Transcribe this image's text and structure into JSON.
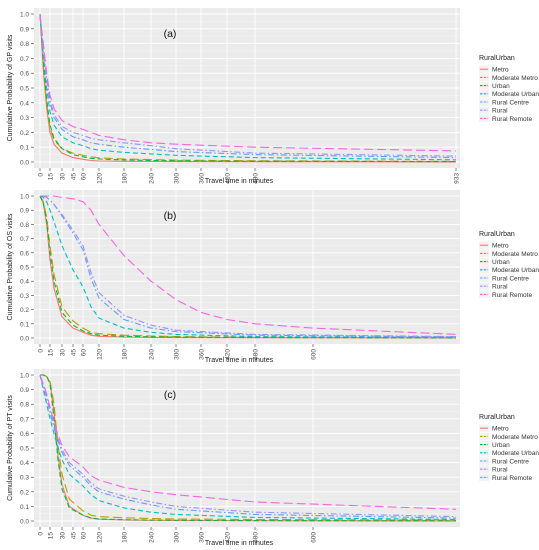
{
  "legend": {
    "title": "RuralUrban",
    "entries": [
      {
        "name": "Metro",
        "color": "#F8766D",
        "dash": "solid"
      },
      {
        "name": "Moderate Metro",
        "color": "#B79F00",
        "dash": "longdash"
      },
      {
        "name": "Urban",
        "color": "#00BA38",
        "dash": "dash"
      },
      {
        "name": "Moderate Urban",
        "color": "#00BFC4",
        "dash": "dash"
      },
      {
        "name": "Rural Centre",
        "color": "#619CFF",
        "dash": "dotdash"
      },
      {
        "name": "Rural",
        "color": "#9590FF",
        "dash": "dotdash"
      },
      {
        "name": "Rural Remote",
        "color": "#F564E3",
        "dash": "longdash"
      }
    ]
  },
  "chart_data": [
    {
      "type": "line",
      "panel_label": "(a)",
      "xlabel": "Travel time in minutes",
      "ylabel": "Cumulative Probability of GP visits",
      "xlim": [
        0,
        933
      ],
      "ylim": [
        0,
        1
      ],
      "x_ticks": [
        0,
        15,
        30,
        45,
        60,
        120,
        180,
        240,
        300,
        360,
        420,
        480,
        933
      ],
      "y_ticks": [
        "0.0",
        "0.1",
        "0.2",
        "0.3",
        "0.4",
        "0.5",
        "0.6",
        "0.7",
        "0.8",
        "0.9",
        "1.0"
      ],
      "grid": true,
      "series": [
        {
          "name": "Metro",
          "x": [
            0,
            5,
            10,
            15,
            20,
            30,
            45,
            60,
            90,
            120,
            180,
            240,
            300,
            480,
            933
          ],
          "y": [
            1.0,
            0.62,
            0.36,
            0.2,
            0.12,
            0.06,
            0.03,
            0.018,
            0.01,
            0.007,
            0.005,
            0.004,
            0.003,
            0.002,
            0.001
          ]
        },
        {
          "name": "Moderate Metro",
          "x": [
            0,
            5,
            10,
            15,
            20,
            30,
            45,
            60,
            90,
            120,
            180,
            240,
            300,
            480,
            933
          ],
          "y": [
            1.0,
            0.65,
            0.4,
            0.23,
            0.15,
            0.09,
            0.06,
            0.045,
            0.035,
            0.028,
            0.02,
            0.016,
            0.013,
            0.008,
            0.004
          ]
        },
        {
          "name": "Urban",
          "x": [
            0,
            5,
            10,
            15,
            20,
            30,
            45,
            60,
            90,
            120,
            180,
            240,
            300,
            480,
            933
          ],
          "y": [
            1.0,
            0.68,
            0.42,
            0.25,
            0.16,
            0.09,
            0.05,
            0.035,
            0.025,
            0.02,
            0.014,
            0.01,
            0.008,
            0.005,
            0.003
          ]
        },
        {
          "name": "Moderate Urban",
          "x": [
            0,
            5,
            10,
            15,
            20,
            30,
            45,
            60,
            90,
            120,
            180,
            240,
            300,
            480,
            933
          ],
          "y": [
            1.0,
            0.72,
            0.5,
            0.34,
            0.25,
            0.17,
            0.13,
            0.11,
            0.09,
            0.08,
            0.065,
            0.055,
            0.045,
            0.03,
            0.015
          ]
        },
        {
          "name": "Rural Centre",
          "x": [
            0,
            5,
            10,
            15,
            20,
            30,
            45,
            60,
            90,
            120,
            180,
            240,
            300,
            480,
            933
          ],
          "y": [
            1.0,
            0.75,
            0.55,
            0.4,
            0.3,
            0.22,
            0.17,
            0.15,
            0.13,
            0.12,
            0.1,
            0.085,
            0.07,
            0.05,
            0.03
          ]
        },
        {
          "name": "Rural",
          "x": [
            0,
            5,
            10,
            15,
            20,
            30,
            45,
            60,
            90,
            120,
            180,
            240,
            300,
            480,
            933
          ],
          "y": [
            1.0,
            0.76,
            0.56,
            0.42,
            0.32,
            0.24,
            0.2,
            0.18,
            0.16,
            0.15,
            0.13,
            0.11,
            0.09,
            0.06,
            0.04
          ]
        },
        {
          "name": "Rural Remote",
          "x": [
            0,
            5,
            10,
            15,
            20,
            30,
            45,
            60,
            90,
            120,
            180,
            240,
            300,
            480,
            933
          ],
          "y": [
            1.0,
            0.8,
            0.6,
            0.45,
            0.36,
            0.28,
            0.24,
            0.22,
            0.2,
            0.18,
            0.15,
            0.13,
            0.12,
            0.1,
            0.075
          ]
        }
      ]
    },
    {
      "type": "line",
      "panel_label": "(b)",
      "xlabel": "Travel time in minutes",
      "ylabel": "Cumulative Probability of OS visits",
      "xlim": [
        0,
        933
      ],
      "ylim": [
        0,
        1
      ],
      "x_ticks": [
        0,
        15,
        30,
        45,
        60,
        120,
        180,
        240,
        300,
        360,
        420,
        480,
        600
      ],
      "y_ticks": [
        "0.0",
        "0.1",
        "0.2",
        "0.3",
        "0.4",
        "0.5",
        "0.6",
        "0.7",
        "0.8",
        "0.9",
        "1.0"
      ],
      "grid": true,
      "series": [
        {
          "name": "Metro",
          "x": [
            0,
            5,
            10,
            15,
            20,
            30,
            45,
            60,
            90,
            120,
            180,
            240,
            300,
            480,
            933
          ],
          "y": [
            1.0,
            0.95,
            0.8,
            0.55,
            0.35,
            0.15,
            0.07,
            0.04,
            0.02,
            0.012,
            0.006,
            0.004,
            0.003,
            0.002,
            0.001
          ]
        },
        {
          "name": "Moderate Metro",
          "x": [
            0,
            5,
            10,
            15,
            20,
            30,
            45,
            60,
            90,
            120,
            180,
            240,
            300,
            480,
            933
          ],
          "y": [
            1.0,
            0.96,
            0.85,
            0.65,
            0.45,
            0.22,
            0.12,
            0.07,
            0.04,
            0.03,
            0.02,
            0.014,
            0.01,
            0.005,
            0.002
          ]
        },
        {
          "name": "Urban",
          "x": [
            0,
            5,
            10,
            15,
            20,
            30,
            45,
            60,
            90,
            120,
            180,
            240,
            300,
            480,
            933
          ],
          "y": [
            1.0,
            0.95,
            0.82,
            0.6,
            0.4,
            0.18,
            0.09,
            0.05,
            0.03,
            0.02,
            0.012,
            0.008,
            0.006,
            0.003,
            0.001
          ]
        },
        {
          "name": "Moderate Urban",
          "x": [
            0,
            5,
            10,
            15,
            20,
            30,
            45,
            60,
            90,
            120,
            180,
            240,
            300,
            480,
            933
          ],
          "y": [
            1.0,
            0.99,
            0.96,
            0.9,
            0.82,
            0.65,
            0.48,
            0.36,
            0.22,
            0.14,
            0.07,
            0.04,
            0.025,
            0.01,
            0.004
          ]
        },
        {
          "name": "Rural Centre",
          "x": [
            0,
            5,
            10,
            15,
            20,
            30,
            45,
            60,
            90,
            120,
            180,
            240,
            300,
            480,
            933
          ],
          "y": [
            1.0,
            1.0,
            0.99,
            0.97,
            0.94,
            0.86,
            0.74,
            0.62,
            0.42,
            0.28,
            0.13,
            0.07,
            0.045,
            0.02,
            0.008
          ]
        },
        {
          "name": "Rural",
          "x": [
            0,
            5,
            10,
            15,
            20,
            30,
            45,
            60,
            90,
            120,
            180,
            240,
            300,
            480,
            933
          ],
          "y": [
            1.0,
            1.0,
            0.99,
            0.97,
            0.94,
            0.87,
            0.76,
            0.65,
            0.46,
            0.32,
            0.16,
            0.09,
            0.055,
            0.025,
            0.01
          ]
        },
        {
          "name": "Rural Remote",
          "x": [
            0,
            5,
            10,
            15,
            20,
            30,
            45,
            60,
            90,
            120,
            180,
            240,
            300,
            360,
            420,
            480,
            600,
            933
          ],
          "y": [
            1.0,
            1.0,
            1.0,
            1.0,
            1.0,
            0.99,
            0.98,
            0.96,
            0.9,
            0.8,
            0.58,
            0.4,
            0.27,
            0.18,
            0.13,
            0.1,
            0.07,
            0.025
          ]
        }
      ]
    },
    {
      "type": "line",
      "panel_label": "(c)",
      "xlabel": "Travel time in minutes",
      "ylabel": "Cumulative Probability of PT visits",
      "xlim": [
        0,
        933
      ],
      "ylim": [
        0,
        1
      ],
      "x_ticks": [
        0,
        15,
        30,
        45,
        60,
        120,
        180,
        240,
        300,
        360,
        420,
        480,
        600
      ],
      "y_ticks": [
        "0.0",
        "0.1",
        "0.2",
        "0.3",
        "0.4",
        "0.5",
        "0.6",
        "0.7",
        "0.8",
        "0.9",
        "1.0"
      ],
      "grid": true,
      "series": [
        {
          "name": "Metro",
          "x": [
            0,
            5,
            10,
            15,
            20,
            25,
            30,
            40,
            60,
            90,
            120,
            180,
            240,
            300,
            480,
            933
          ],
          "y": [
            1.0,
            1.0,
            0.99,
            0.95,
            0.75,
            0.45,
            0.25,
            0.1,
            0.04,
            0.02,
            0.012,
            0.007,
            0.005,
            0.004,
            0.002,
            0.001
          ]
        },
        {
          "name": "Moderate Metro",
          "x": [
            0,
            5,
            10,
            15,
            20,
            25,
            30,
            40,
            60,
            90,
            120,
            180,
            240,
            300,
            480,
            933
          ],
          "y": [
            1.0,
            1.0,
            0.99,
            0.96,
            0.8,
            0.52,
            0.32,
            0.15,
            0.07,
            0.04,
            0.03,
            0.022,
            0.017,
            0.014,
            0.01,
            0.006
          ]
        },
        {
          "name": "Urban",
          "x": [
            0,
            5,
            10,
            15,
            20,
            25,
            30,
            40,
            60,
            90,
            120,
            180,
            240,
            300,
            480,
            933
          ],
          "y": [
            1.0,
            1.0,
            0.99,
            0.94,
            0.7,
            0.42,
            0.22,
            0.09,
            0.04,
            0.02,
            0.014,
            0.009,
            0.006,
            0.005,
            0.003,
            0.001
          ]
        },
        {
          "name": "Moderate Urban",
          "x": [
            0,
            5,
            10,
            15,
            20,
            25,
            30,
            40,
            60,
            90,
            120,
            180,
            240,
            300,
            480,
            933
          ],
          "y": [
            1.0,
            0.9,
            0.8,
            0.7,
            0.6,
            0.5,
            0.42,
            0.32,
            0.24,
            0.18,
            0.14,
            0.09,
            0.06,
            0.045,
            0.025,
            0.01
          ]
        },
        {
          "name": "Rural Centre",
          "x": [
            0,
            5,
            10,
            15,
            20,
            25,
            30,
            40,
            60,
            90,
            120,
            180,
            240,
            300,
            480,
            933
          ],
          "y": [
            1.0,
            0.92,
            0.84,
            0.74,
            0.64,
            0.55,
            0.47,
            0.38,
            0.3,
            0.24,
            0.2,
            0.15,
            0.11,
            0.08,
            0.045,
            0.02
          ]
        },
        {
          "name": "Rural",
          "x": [
            0,
            5,
            10,
            15,
            20,
            25,
            30,
            40,
            60,
            90,
            120,
            180,
            240,
            300,
            480,
            933
          ],
          "y": [
            1.0,
            0.93,
            0.85,
            0.76,
            0.66,
            0.57,
            0.49,
            0.4,
            0.32,
            0.26,
            0.22,
            0.17,
            0.13,
            0.1,
            0.06,
            0.03
          ]
        },
        {
          "name": "Rural Remote",
          "x": [
            0,
            5,
            10,
            15,
            20,
            25,
            30,
            40,
            60,
            90,
            120,
            180,
            240,
            300,
            480,
            933
          ],
          "y": [
            1.0,
            0.94,
            0.87,
            0.78,
            0.68,
            0.59,
            0.52,
            0.44,
            0.37,
            0.31,
            0.28,
            0.23,
            0.2,
            0.18,
            0.13,
            0.08
          ]
        }
      ]
    }
  ]
}
